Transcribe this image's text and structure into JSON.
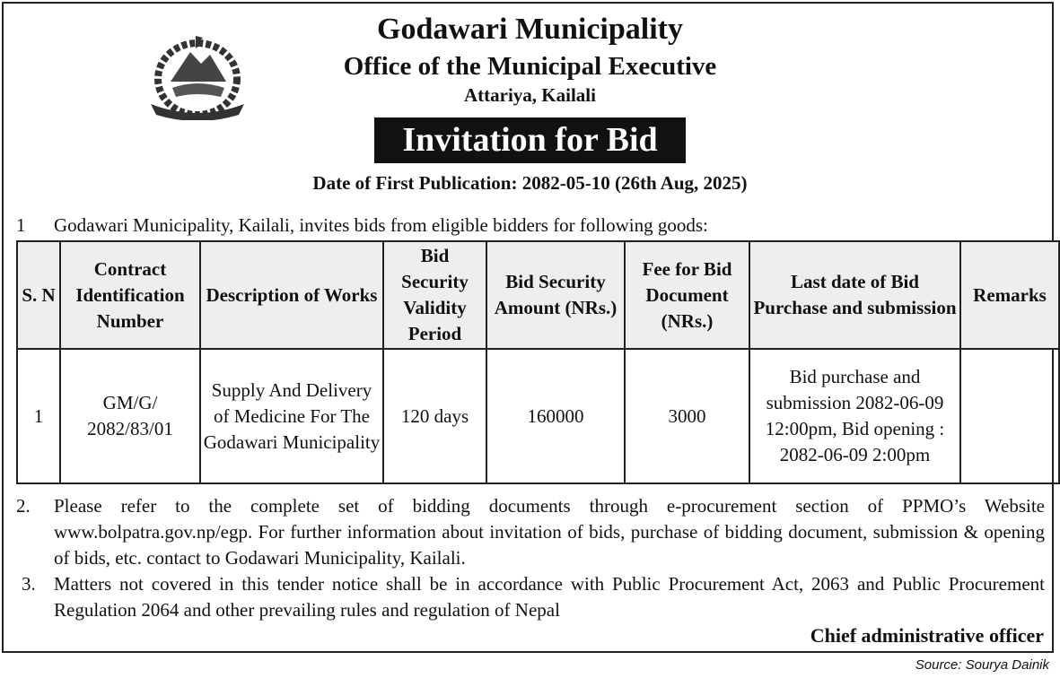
{
  "header": {
    "emblem": "nepal-government-emblem",
    "org": "Godawari Municipality",
    "office": "Office of the Municipal Executive",
    "location": "Attariya, Kailali",
    "notice_title": "Invitation for Bid",
    "publication_date": "Date of First Publication: 2082-05-10 (26th Aug, 2025)"
  },
  "intro": {
    "num": "1",
    "text": "Godawari Municipality, Kailali, invites bids from eligible bidders for following goods:"
  },
  "table": {
    "columns": [
      "S. N",
      "Contract Identification Number",
      "Description of Works",
      "Bid Security Validity Period",
      "Bid Security Amount (NRs.)",
      "Fee for Bid Document (NRs.)",
      "Last date of Bid Purchase and submission",
      "Remarks"
    ],
    "rows": [
      [
        "1",
        "GM/G/ 2082/83/01",
        "Supply And Delivery of Medicine For The Godawari Municipality",
        "120 days",
        "160000",
        "3000",
        "Bid purchase and submission 2082-06-09 12:00pm, Bid opening : 2082-06-09 2:00pm",
        ""
      ]
    ]
  },
  "paragraphs": [
    {
      "num": "2.",
      "text": "Please refer to the complete set of bidding documents through e-procurement section of PPMO’s Website www.bolpatra.gov.np/egp. For further information about invitation of bids, purchase of bidding document, submission & opening of bids, etc. contact to Godawari Municipality, Kailali."
    },
    {
      "num": "3.",
      "text": "Matters not covered in this tender notice shall be in accordance with Public Procurement Act, 2063 and Public Procurement Regulation 2064 and other prevailing rules and regulation of Nepal"
    }
  ],
  "signature": "Chief administrative officer",
  "source": "Source: Sourya Dainik"
}
